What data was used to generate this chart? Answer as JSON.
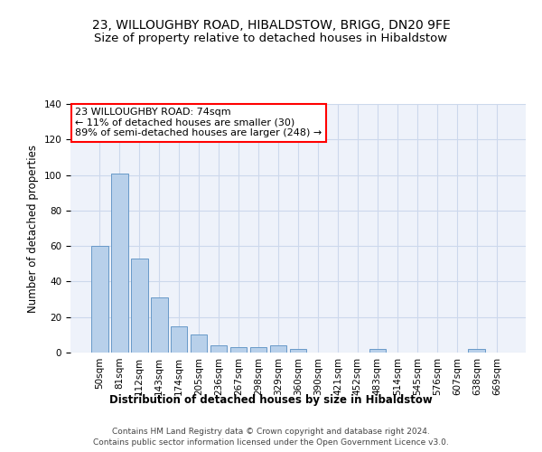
{
  "title": "23, WILLOUGHBY ROAD, HIBALDSTOW, BRIGG, DN20 9FE",
  "subtitle": "Size of property relative to detached houses in Hibaldstow",
  "xlabel": "Distribution of detached houses by size in Hibaldstow",
  "ylabel": "Number of detached properties",
  "categories": [
    "50sqm",
    "81sqm",
    "112sqm",
    "143sqm",
    "174sqm",
    "205sqm",
    "236sqm",
    "267sqm",
    "298sqm",
    "329sqm",
    "360sqm",
    "390sqm",
    "421sqm",
    "452sqm",
    "483sqm",
    "514sqm",
    "545sqm",
    "576sqm",
    "607sqm",
    "638sqm",
    "669sqm"
  ],
  "values": [
    60,
    101,
    53,
    31,
    15,
    10,
    4,
    3,
    3,
    4,
    2,
    0,
    0,
    0,
    2,
    0,
    0,
    0,
    0,
    2,
    0
  ],
  "bar_color": "#b8d0ea",
  "bar_edge_color": "#6899c8",
  "annotation_box_text": "23 WILLOUGHBY ROAD: 74sqm\n← 11% of detached houses are smaller (30)\n89% of semi-detached houses are larger (248) →",
  "annotation_box_color": "white",
  "annotation_box_edge_color": "red",
  "footer_line1": "Contains HM Land Registry data © Crown copyright and database right 2024.",
  "footer_line2": "Contains public sector information licensed under the Open Government Licence v3.0.",
  "ylim": [
    0,
    140
  ],
  "yticks": [
    0,
    20,
    40,
    60,
    80,
    100,
    120,
    140
  ],
  "grid_color": "#ccd8ec",
  "background_color": "#eef2fa",
  "title_fontsize": 10,
  "subtitle_fontsize": 9.5,
  "axis_label_fontsize": 8.5,
  "tick_fontsize": 7.5,
  "annotation_fontsize": 8,
  "footer_fontsize": 6.5
}
